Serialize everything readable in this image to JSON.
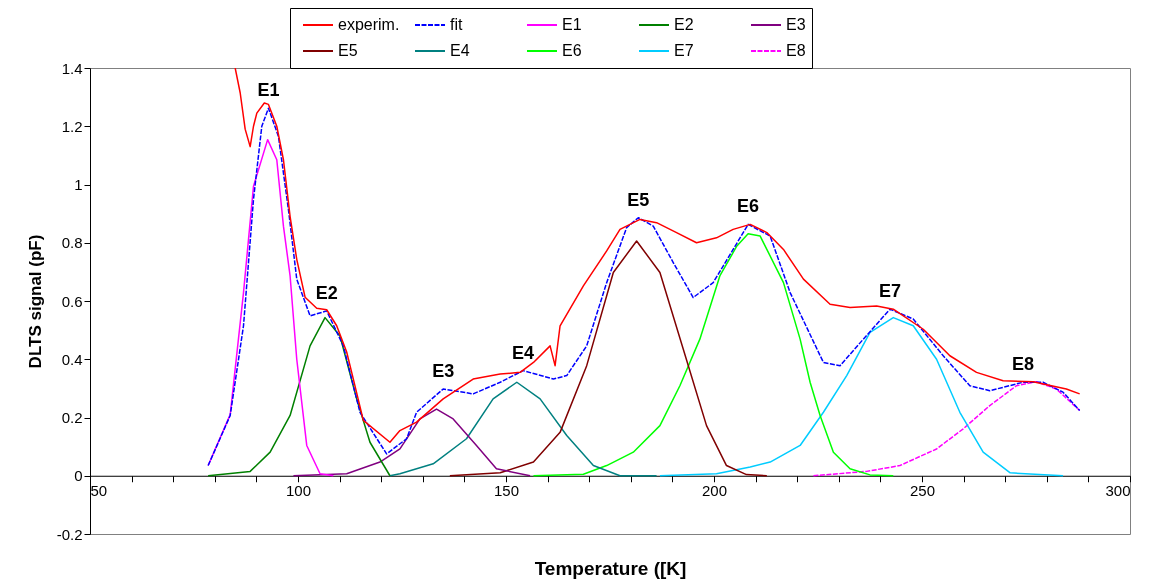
{
  "chart_data": {
    "type": "line",
    "xlabel": "Temperature ([K]",
    "ylabel": "DLTS signal  (pF)",
    "xlim": [
      50,
      300
    ],
    "xticks": [
      50,
      {
        "value": 60,
        "label": null
      },
      {
        "value": 70,
        "label": null
      },
      {
        "value": 80,
        "label": null
      },
      {
        "value": 90,
        "label": null
      },
      100,
      {
        "value": 110,
        "label": null
      },
      {
        "value": 120,
        "label": null
      },
      {
        "value": 130,
        "label": null
      },
      {
        "value": 140,
        "label": null
      },
      150,
      {
        "value": 160,
        "label": null
      },
      {
        "value": 170,
        "label": null
      },
      {
        "value": 180,
        "label": null
      },
      {
        "value": 190,
        "label": null
      },
      200,
      {
        "value": 210,
        "label": null
      },
      {
        "value": 220,
        "label": null
      },
      {
        "value": 230,
        "label": null
      },
      {
        "value": 240,
        "label": null
      },
      250,
      {
        "value": 260,
        "label": null
      },
      {
        "value": 270,
        "label": null
      },
      {
        "value": 280,
        "label": null
      },
      {
        "value": 290,
        "label": null
      },
      300
    ],
    "ylim": [
      -0.2,
      1.4
    ],
    "yticks": [
      -0.2,
      0,
      0.2,
      0.4,
      0.6,
      0.8,
      1,
      1.2,
      1.4
    ],
    "grid": false,
    "legend": "top",
    "line_style": "solid",
    "series": [
      {
        "name": "experim.",
        "color": "#ff0000",
        "x": [
          84.9,
          86.1,
          87.3,
          88.5,
          89.3,
          90.1,
          91.9,
          92.9,
          94.9,
          96.5,
          98.1,
          99.7,
          101.7,
          104.5,
          106.9,
          109.3,
          111.7,
          113.3,
          115.7,
          122.1,
          124.5,
          128.5,
          134.9,
          142.1,
          148.6,
          153.4,
          156.6,
          160.6,
          161.8,
          163,
          168.6,
          174.2,
          177.4,
          182.2,
          186.2,
          191,
          195.8,
          200.6,
          204.6,
          208.7,
          212.7,
          216.7,
          221.5,
          227.9,
          232.7,
          239.1,
          243.1,
          250.3,
          256.7,
          263.1,
          269.5,
          276.7,
          284.7,
          287.9
        ],
        "values": [
          1.4,
          1.315,
          1.19,
          1.13,
          1.2,
          1.245,
          1.28,
          1.275,
          1.2,
          1.085,
          0.89,
          0.743,
          0.613,
          0.575,
          0.57,
          0.515,
          0.425,
          0.332,
          0.19,
          0.115,
          0.155,
          0.184,
          0.264,
          0.332,
          0.349,
          0.355,
          0.389,
          0.446,
          0.378,
          0.515,
          0.652,
          0.772,
          0.846,
          0.88,
          0.869,
          0.835,
          0.8,
          0.817,
          0.846,
          0.863,
          0.835,
          0.777,
          0.675,
          0.589,
          0.578,
          0.583,
          0.572,
          0.503,
          0.412,
          0.355,
          0.326,
          0.323,
          0.298,
          0.281
        ]
      },
      {
        "name": "fit",
        "color": "#0000ff",
        "line_style": "dashed",
        "x": [
          78.4,
          83.7,
          86.9,
          89.3,
          91.3,
          92.9,
          95.3,
          97.7,
          99.7,
          102.9,
          106.9,
          110.9,
          114.9,
          121.3,
          126.1,
          128.5,
          134.9,
          142.1,
          148.6,
          154.1,
          161.4,
          164.6,
          169.4,
          174.2,
          179,
          181.8,
          185.4,
          190.2,
          195,
          199.8,
          204.6,
          208.2,
          213.5,
          218.3,
          226.3,
          230.3,
          235.9,
          242.3,
          247.9,
          255.1,
          261.5,
          266.3,
          274.3,
          279.1,
          283.9,
          287.9
        ],
        "values": [
          0.035,
          0.207,
          0.515,
          0.949,
          1.2,
          1.262,
          1.165,
          0.914,
          0.675,
          0.549,
          0.566,
          0.446,
          0.218,
          0.075,
          0.127,
          0.218,
          0.298,
          0.281,
          0.321,
          0.361,
          0.332,
          0.344,
          0.446,
          0.663,
          0.852,
          0.886,
          0.857,
          0.732,
          0.612,
          0.663,
          0.777,
          0.863,
          0.823,
          0.629,
          0.389,
          0.378,
          0.469,
          0.572,
          0.538,
          0.412,
          0.309,
          0.292,
          0.321,
          0.321,
          0.287,
          0.224
        ]
      },
      {
        "name": "E1",
        "color": "#ff00ff",
        "x": [
          78.4,
          83.7,
          86.9,
          89.3,
          92.7,
          94.9,
          96.5,
          98.1,
          99.7,
          102.1,
          105.3,
          108.5
        ],
        "values": [
          0.035,
          0.21,
          0.629,
          0.994,
          1.154,
          1.085,
          0.857,
          0.686,
          0.4,
          0.104,
          0.007,
          0
        ]
      },
      {
        "name": "E2",
        "color": "#008000",
        "x": [
          78.4,
          88.5,
          93.3,
          98.1,
          102.9,
          106.5,
          110.1,
          114.1,
          117.3,
          122.1
        ],
        "values": [
          0,
          0.015,
          0.081,
          0.207,
          0.446,
          0.543,
          0.48,
          0.264,
          0.115,
          0
        ]
      },
      {
        "name": "E3",
        "color": "#800080",
        "x": [
          98.9,
          111.7,
          119.7,
          124.5,
          129.3,
          133.3,
          137.3,
          142.9,
          147.7,
          155.8
        ],
        "values": [
          0,
          0.007,
          0.047,
          0.092,
          0.195,
          0.229,
          0.195,
          0.104,
          0.024,
          0
        ]
      },
      {
        "name": "E5",
        "color": "#800000",
        "x": [
          136.5,
          148.6,
          156.6,
          163,
          169.4,
          175.8,
          181.4,
          187,
          192.6,
          198.2,
          203,
          207.8,
          212.7
        ],
        "values": [
          0,
          0.01,
          0.047,
          0.149,
          0.378,
          0.698,
          0.806,
          0.698,
          0.435,
          0.172,
          0.035,
          0.004,
          0
        ]
      },
      {
        "name": "E4",
        "color": "#008080",
        "x": [
          122.1,
          124.5,
          132.5,
          140.5,
          146.9,
          152.6,
          158.2,
          164.6,
          171,
          177.4,
          186.2
        ],
        "values": [
          0,
          0.007,
          0.041,
          0.127,
          0.264,
          0.321,
          0.264,
          0.138,
          0.035,
          0,
          0
        ]
      },
      {
        "name": "E6",
        "color": "#00ff00",
        "x": [
          156.6,
          168.6,
          174.2,
          180.6,
          187,
          191.8,
          196.6,
          201.4,
          205.5,
          208.2,
          211.1,
          216.7,
          220.7,
          223.1,
          225.5,
          228.7,
          232.7,
          237.5,
          243.1
        ],
        "values": [
          0,
          0.005,
          0.035,
          0.081,
          0.172,
          0.309,
          0.469,
          0.686,
          0.789,
          0.831,
          0.823,
          0.663,
          0.469,
          0.321,
          0.207,
          0.081,
          0.024,
          0.003,
          0
        ]
      },
      {
        "name": "E7",
        "color": "#00ccff",
        "x": [
          187,
          200.6,
          208.7,
          213.5,
          220.7,
          226.3,
          231.9,
          237.5,
          243.1,
          247.9,
          253.5,
          259.1,
          264.7,
          271.2,
          283.9
        ],
        "values": [
          0,
          0.007,
          0.03,
          0.047,
          0.104,
          0.218,
          0.344,
          0.492,
          0.543,
          0.515,
          0.4,
          0.218,
          0.081,
          0.01,
          0
        ]
      },
      {
        "name": "E8",
        "color": "#ff00ff",
        "line_style": "dashed",
        "x": [
          223.9,
          236.7,
          244.7,
          253.5,
          259.9,
          266.3,
          272.7,
          277.5,
          282.3,
          287.9
        ],
        "values": [
          0,
          0.015,
          0.035,
          0.092,
          0.161,
          0.241,
          0.309,
          0.323,
          0.298,
          0.224
        ]
      }
    ],
    "annotations": [
      {
        "text": "E1",
        "x": 92.9,
        "y": 1.262
      },
      {
        "text": "E2",
        "x": 106.9,
        "y": 0.566
      },
      {
        "text": "E3",
        "x": 134.9,
        "y": 0.298
      },
      {
        "text": "E4",
        "x": 154.1,
        "y": 0.361
      },
      {
        "text": "E5",
        "x": 181.8,
        "y": 0.886
      },
      {
        "text": "E6",
        "x": 208.2,
        "y": 0.863
      },
      {
        "text": "E7",
        "x": 242.3,
        "y": 0.572
      },
      {
        "text": "E8",
        "x": 274.3,
        "y": 0.321
      }
    ]
  }
}
